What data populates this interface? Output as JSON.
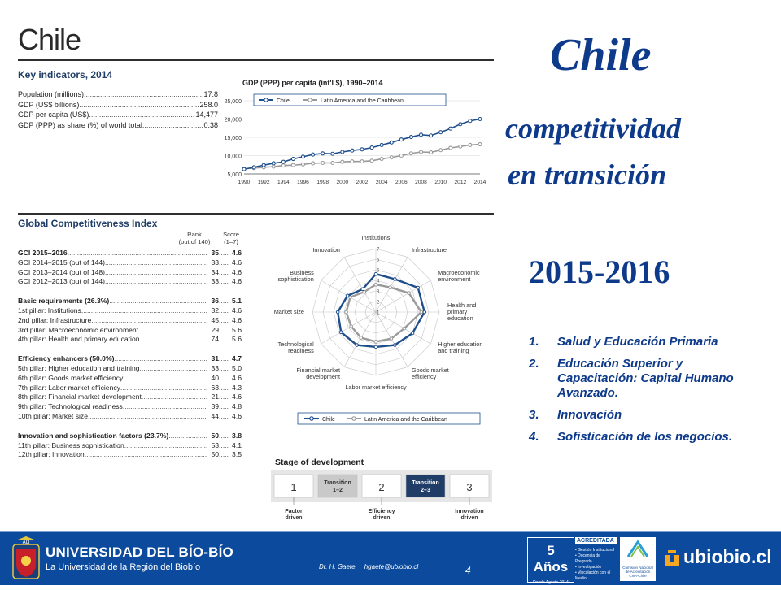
{
  "left": {
    "country": "Chile",
    "key_indicators": {
      "title": "Key indicators, 2014",
      "rows": [
        {
          "label": "Population (millions)",
          "value": "17.8"
        },
        {
          "label": "GDP (US$ billions)",
          "value": "258.0"
        },
        {
          "label": "GDP per capita (US$)",
          "value": "14,477"
        },
        {
          "label": "GDP (PPP) as share (%) of world total",
          "value": "0.38"
        }
      ]
    },
    "gdp_chart_title": "GDP (PPP) per capita (int'l $), 1990–2014",
    "gci": {
      "title": "Global Competitiveness Index",
      "rank_header": "Rank",
      "rank_sub": "(out of 140)",
      "score_header": "Score",
      "score_sub": "(1–7)",
      "groups": [
        {
          "rows": [
            {
              "label": "GCI 2015–2016",
              "rank": "35",
              "score": "4.6",
              "bold": true
            },
            {
              "label": "GCI 2014–2015 (out of 144)",
              "rank": "33",
              "score": "4.6"
            },
            {
              "label": "GCI 2013–2014 (out of 148)",
              "rank": "34",
              "score": "4.6"
            },
            {
              "label": "GCI 2012–2013 (out of 144)",
              "rank": "33",
              "score": "4.6"
            }
          ]
        },
        {
          "rows": [
            {
              "label": "Basic requirements (26.3%)",
              "rank": "36",
              "score": "5.1",
              "bold": true
            },
            {
              "label": "1st pillar: Institutions",
              "rank": "32",
              "score": "4.6"
            },
            {
              "label": "2nd pillar: Infrastructure",
              "rank": "45",
              "score": "4.6"
            },
            {
              "label": "3rd pillar: Macroeconomic environment",
              "rank": "29",
              "score": "5.6"
            },
            {
              "label": "4th pillar: Health and primary education",
              "rank": "74",
              "score": "5.6"
            }
          ]
        },
        {
          "rows": [
            {
              "label": "Efficiency enhancers (50.0%)",
              "rank": "31",
              "score": "4.7",
              "bold": true
            },
            {
              "label": "5th pillar: Higher education and training",
              "rank": "33",
              "score": "5.0"
            },
            {
              "label": "6th pillar: Goods market efficiency",
              "rank": "40",
              "score": "4.6"
            },
            {
              "label": "7th pillar: Labor market efficiency",
              "rank": "63",
              "score": "4.3"
            },
            {
              "label": "8th pillar: Financial market development",
              "rank": "21",
              "score": "4.6"
            },
            {
              "label": "9th pillar: Technological readiness",
              "rank": "39",
              "score": "4.8"
            },
            {
              "label": "10th pillar: Market size",
              "rank": "44",
              "score": "4.6"
            }
          ]
        },
        {
          "rows": [
            {
              "label": "Innovation and sophistication factors (23.7%)",
              "rank": "50",
              "score": "3.8",
              "bold": true
            },
            {
              "label": "11th pillar: Business sophistication",
              "rank": "53",
              "score": "4.1"
            },
            {
              "label": "12th pillar: Innovation",
              "rank": "50",
              "score": "3.5"
            }
          ]
        }
      ]
    },
    "stage": {
      "title": "Stage of development",
      "boxes": [
        {
          "label": "1",
          "caption": "Factor\ndriven"
        },
        {
          "label": "Transition\n1–2",
          "caption": ""
        },
        {
          "label": "2",
          "caption": "Efficiency\ndriven"
        },
        {
          "label": "Transition\n2–3",
          "caption": "",
          "active": true
        },
        {
          "label": "3",
          "caption": "Innovation\ndriven"
        }
      ]
    }
  },
  "chart_data": [
    {
      "type": "line",
      "title": "GDP (PPP) per capita (int'l $), 1990–2014",
      "x": [
        1990,
        1991,
        1992,
        1993,
        1994,
        1995,
        1996,
        1997,
        1998,
        1999,
        2000,
        2001,
        2002,
        2003,
        2004,
        2005,
        2006,
        2007,
        2008,
        2009,
        2010,
        2011,
        2012,
        2013,
        2014
      ],
      "x_tick_labels": [
        "1990",
        "1992",
        "1994",
        "1996",
        "1998",
        "2000",
        "2002",
        "2004",
        "2006",
        "2008",
        "2010",
        "2012",
        "2014"
      ],
      "y_tick_labels": [
        "5,000",
        "10,000",
        "15,000",
        "20,000",
        "25,000"
      ],
      "ylim": [
        5000,
        25000
      ],
      "grid": true,
      "legend": "top-left",
      "series": [
        {
          "name": "Chile",
          "color": "#1f4e8c",
          "values": [
            6300,
            6800,
            7400,
            7900,
            8300,
            9100,
            9700,
            10300,
            10600,
            10500,
            11000,
            11400,
            11700,
            12200,
            12900,
            13600,
            14400,
            15100,
            15700,
            15500,
            16400,
            17400,
            18600,
            19500,
            20000
          ]
        },
        {
          "name": "Latin America and the Caribbean",
          "color": "#9a9a9a",
          "values": [
            6400,
            6600,
            6800,
            7000,
            7300,
            7400,
            7600,
            7900,
            8000,
            8000,
            8300,
            8400,
            8400,
            8600,
            9100,
            9500,
            10000,
            10600,
            11000,
            10900,
            11500,
            12100,
            12500,
            12900,
            13100
          ]
        }
      ]
    },
    {
      "type": "radar",
      "axes": [
        "Institutions",
        "Infrastructure",
        "Macroeconomic environment",
        "Health and primary education",
        "Higher education and training",
        "Goods market efficiency",
        "Labor market efficiency",
        "Financial market development",
        "Technological readiness",
        "Market size",
        "Business sophistication",
        "Innovation"
      ],
      "axis_labels": [
        "Institutions",
        "Infrastructure",
        "Macroeconomic\nenvironment",
        "Health and\nprimary\neducation",
        "Higher education\nand training",
        "Goods market\nefficiency",
        "Labor market efficiency",
        "Financial market\ndevelopment",
        "Technological\nreadiness",
        "Market size",
        "Business\nsophistication",
        "Innovation"
      ],
      "rlim": [
        1,
        7
      ],
      "r_tick_labels": [
        "1",
        "2",
        "3",
        "4",
        "5",
        "6",
        "7"
      ],
      "legend": "bottom",
      "series": [
        {
          "name": "Chile",
          "color": "#1f4e8c",
          "values": [
            4.6,
            4.6,
            5.6,
            5.6,
            5.0,
            4.6,
            4.3,
            4.6,
            4.8,
            4.6,
            4.1,
            3.5
          ]
        },
        {
          "name": "Latin America and the Caribbean",
          "color": "#9a9a9a",
          "values": [
            3.6,
            3.7,
            4.6,
            5.3,
            4.1,
            3.9,
            3.8,
            3.8,
            3.7,
            3.8,
            3.8,
            3.2
          ]
        }
      ]
    }
  ],
  "right": {
    "title": "Chile",
    "subtitle_1": "competitividad",
    "subtitle_2": "en transición",
    "years": "2015-2016",
    "priorities": [
      {
        "num": "1.",
        "text": "Salud y Educación Primaria"
      },
      {
        "num": "2.",
        "text": "Educación Superior y Capacitación: Capital Humano Avanzado."
      },
      {
        "num": "3.",
        "text": "Innovación"
      },
      {
        "num": "4.",
        "text": "Sofisticación de los negocios."
      }
    ]
  },
  "footer": {
    "university": "UNIVERSIDAD DEL BÍO-BÍO",
    "university_sub": "La Universidad de la Región del Biobío",
    "author": "Dr. H. Gaete,",
    "email": "hgaete@ubiobio.cl",
    "page": "4",
    "accred_years": "5 Años",
    "accred_dates": "Desde Agosto 2014\nHasta Agosto 2019",
    "accred_label": "ACREDITADA",
    "accred_items": [
      "Gestión Institucional",
      "Docencia de Pregrado",
      "Investigación",
      "Vinculación con el Medio"
    ],
    "cna_label": "Comisión Nacional de Acreditación CNA-Chile",
    "brand": "ubiobio.cl"
  },
  "colors": {
    "title_blue": "#0d3a8a",
    "chile_series": "#1f4e8c",
    "lac_series": "#9a9a9a",
    "footer_blue": "#0b4a9c"
  }
}
